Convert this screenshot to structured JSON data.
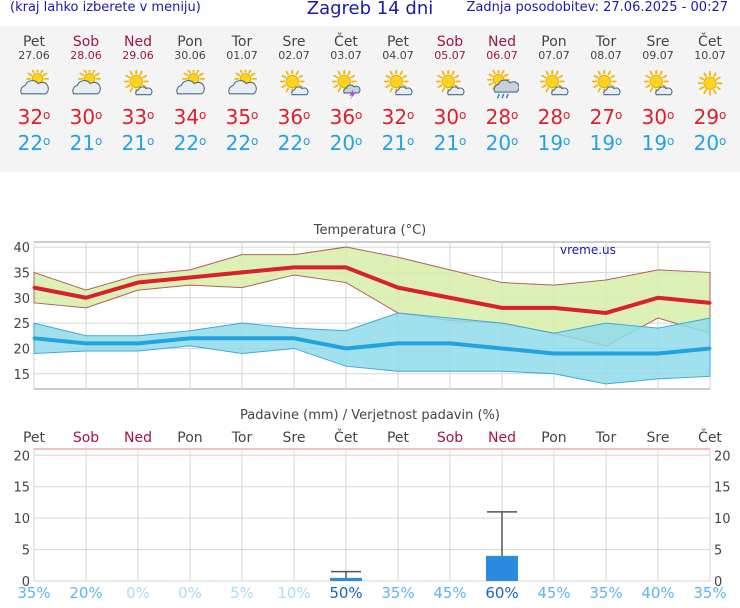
{
  "header": {
    "hint": "(kraj lahko izberete v meniju)",
    "title": "Zagreb 14 dni",
    "updated": "Zadnja posodobitev: 27.06.2025 - 00:27"
  },
  "colors": {
    "max": "#d8202f",
    "min": "#22a3e0",
    "weekend": "#a0144a",
    "rain_bar": "#2b8be0"
  },
  "days": [
    {
      "day": "Pet",
      "date": "27.06",
      "weekend": false,
      "icon": "partly-cloudy-icon",
      "tmax": "32",
      "tmin": "22"
    },
    {
      "day": "Sob",
      "date": "28.06",
      "weekend": true,
      "icon": "partly-cloudy-icon",
      "tmax": "30",
      "tmin": "21"
    },
    {
      "day": "Ned",
      "date": "29.06",
      "weekend": true,
      "icon": "sun-small-cloud-icon",
      "tmax": "33",
      "tmin": "21"
    },
    {
      "day": "Pon",
      "date": "30.06",
      "weekend": false,
      "icon": "partly-cloudy-icon",
      "tmax": "34",
      "tmin": "22"
    },
    {
      "day": "Tor",
      "date": "01.07",
      "weekend": false,
      "icon": "partly-cloudy-icon",
      "tmax": "35",
      "tmin": "22"
    },
    {
      "day": "Sre",
      "date": "02.07",
      "weekend": false,
      "icon": "sun-small-cloud-icon",
      "tmax": "36",
      "tmin": "22"
    },
    {
      "day": "Čet",
      "date": "03.07",
      "weekend": false,
      "icon": "sun-thunder-icon",
      "tmax": "36",
      "tmin": "20"
    },
    {
      "day": "Pet",
      "date": "04.07",
      "weekend": false,
      "icon": "sun-small-cloud-icon",
      "tmax": "32",
      "tmin": "21"
    },
    {
      "day": "Sob",
      "date": "05.07",
      "weekend": true,
      "icon": "sun-small-cloud-icon",
      "tmax": "30",
      "tmin": "21"
    },
    {
      "day": "Ned",
      "date": "06.07",
      "weekend": true,
      "icon": "sun-rain-icon",
      "tmax": "28",
      "tmin": "20"
    },
    {
      "day": "Pon",
      "date": "07.07",
      "weekend": false,
      "icon": "sun-small-cloud-icon",
      "tmax": "28",
      "tmin": "19"
    },
    {
      "day": "Tor",
      "date": "08.07",
      "weekend": false,
      "icon": "sun-small-cloud-icon",
      "tmax": "27",
      "tmin": "19"
    },
    {
      "day": "Sre",
      "date": "09.07",
      "weekend": false,
      "icon": "sun-small-cloud-icon",
      "tmax": "30",
      "tmin": "19"
    },
    {
      "day": "Čet",
      "date": "10.07",
      "weekend": false,
      "icon": "sun-icon",
      "tmax": "29",
      "tmin": "20"
    }
  ],
  "degree_symbol": "o",
  "chart_data": [
    {
      "type": "line",
      "title": "Temperatura (°C)",
      "watermark": "vreme.us",
      "categories": [
        "Pet",
        "Sob",
        "Ned",
        "Pon",
        "Tor",
        "Sre",
        "Čet",
        "Pet",
        "Sob",
        "Ned",
        "Pon",
        "Tor",
        "Sre",
        "Čet"
      ],
      "ylim": [
        12,
        41
      ],
      "yticks": [
        15,
        20,
        25,
        30,
        35,
        40
      ],
      "grid": true,
      "series": [
        {
          "values": [
            32,
            30,
            33,
            34,
            35,
            36,
            36,
            32,
            30,
            28,
            28,
            27,
            30,
            29
          ]
        },
        {
          "values": [
            22,
            21,
            21,
            22,
            22,
            22,
            20,
            21,
            21,
            20,
            19,
            19,
            19,
            20
          ]
        }
      ],
      "bands": [
        {
          "upper": [
            35,
            31.5,
            34.5,
            35.5,
            38.5,
            38.5,
            40,
            38,
            35.5,
            33,
            32.5,
            33.5,
            35.5,
            35
          ],
          "lower": [
            29,
            28,
            31.5,
            32.5,
            32,
            34.5,
            33,
            27,
            25.5,
            25,
            23,
            20.5,
            26,
            23
          ]
        },
        {
          "upper": [
            25,
            22.5,
            22.5,
            23.5,
            25,
            24,
            23.5,
            27,
            26,
            25,
            23,
            25,
            24,
            26
          ],
          "lower": [
            19,
            19.5,
            19.5,
            20.5,
            19,
            20,
            16.5,
            15.5,
            15.5,
            15.5,
            15,
            13,
            14,
            14.5
          ]
        }
      ]
    },
    {
      "type": "bar",
      "title": "Padavine (mm) / Verjetnost padavin (%)",
      "categories": [
        "Pet",
        "Sob",
        "Ned",
        "Pon",
        "Tor",
        "Sre",
        "Čet",
        "Pet",
        "Sob",
        "Ned",
        "Pon",
        "Tor",
        "Sre",
        "Čet"
      ],
      "ylim": [
        0,
        21
      ],
      "yticks": [
        0,
        5,
        10,
        15,
        20
      ],
      "values": [
        0,
        0,
        0,
        0,
        0,
        0,
        0.5,
        0,
        0,
        4,
        0,
        0,
        0,
        0
      ],
      "error_high": [
        null,
        null,
        null,
        null,
        null,
        null,
        1.5,
        null,
        null,
        11,
        null,
        null,
        null,
        null
      ],
      "probability": [
        "35%",
        "20%",
        "0%",
        "0%",
        "5%",
        "10%",
        "50%",
        "35%",
        "45%",
        "60%",
        "45%",
        "35%",
        "40%",
        "35%"
      ],
      "probability_values": [
        35,
        20,
        0,
        0,
        5,
        10,
        50,
        35,
        45,
        60,
        45,
        35,
        40,
        35
      ]
    }
  ]
}
